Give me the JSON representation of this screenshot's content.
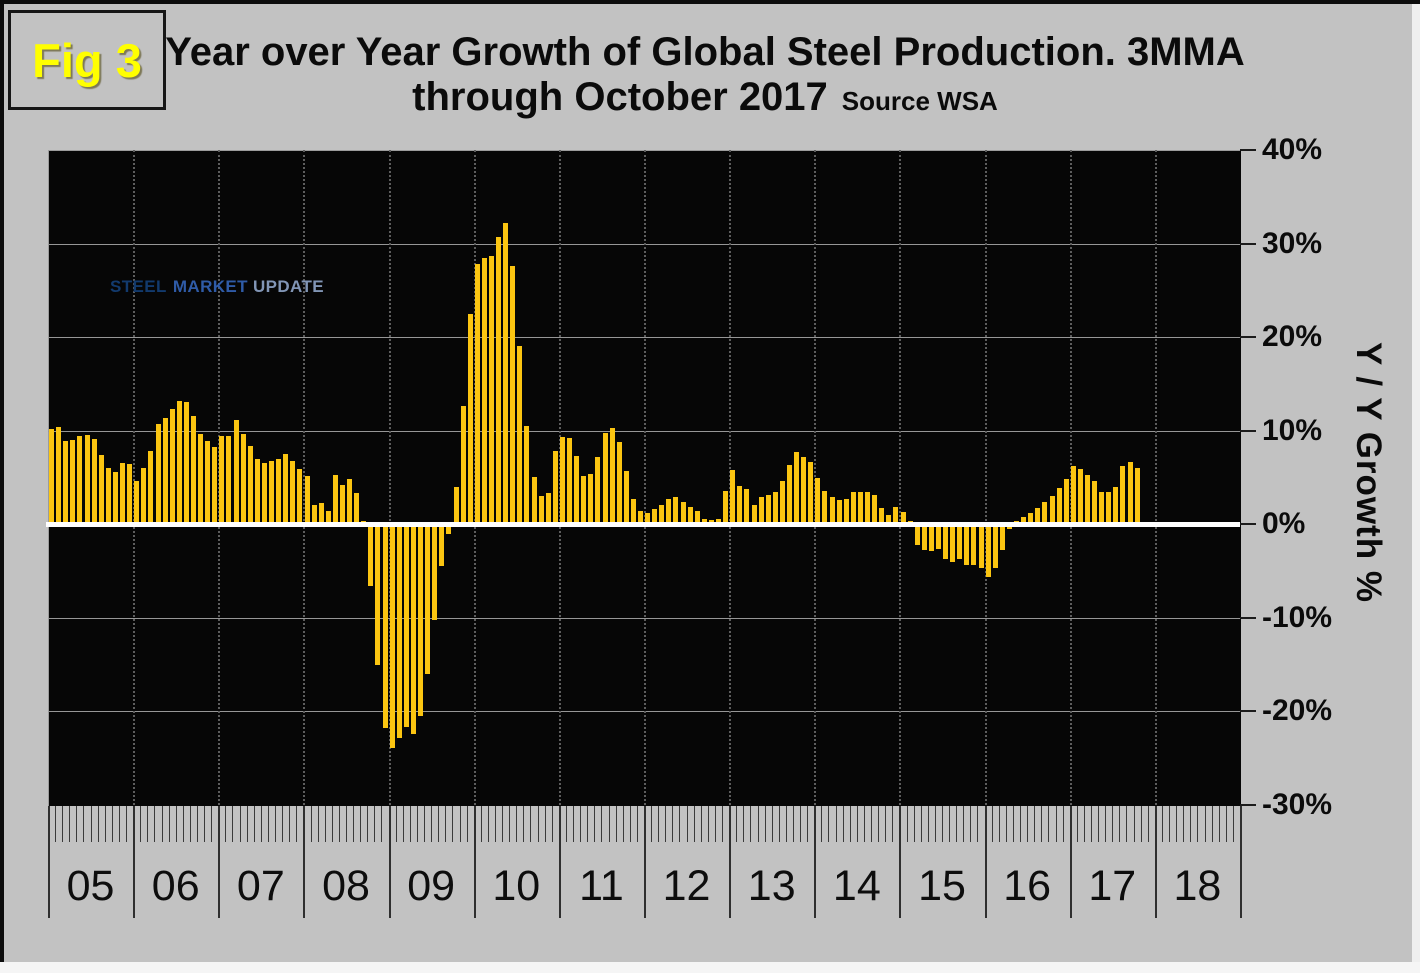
{
  "figure": {
    "fig_label": "Fig 3",
    "title_line1": "Year over Year Growth of Global Steel Production. 3MMA",
    "title_line2": "through October 2017",
    "source": "Source WSA"
  },
  "logo": {
    "word1": "STEEL",
    "word2": "MARKET",
    "word3": "UPDATE"
  },
  "colors": {
    "page_background": "#C2C2C2",
    "plot_background": "#060606",
    "bar": "#FBC511",
    "zero_line": "#FFFFFF",
    "horizontal_gridline": "#969696",
    "year_gridline": "#5D5D5D",
    "fig_label": "#FFFF00",
    "logo_orange_top": "#F79B2B",
    "logo_orange_bottom": "#D9441C",
    "logo_navy": "#123A6D",
    "logo_blue": "#2F5BA7",
    "logo_gray_blue": "#8195B5"
  },
  "chart_data": {
    "type": "bar",
    "title": "Year over Year Growth of Global Steel Production. 3MMA through October 2017",
    "source": "Source WSA",
    "xlabel": "",
    "ylabel": "Y / Y Growth %",
    "ylim": [
      -30,
      40
    ],
    "ytick_values": [
      40,
      30,
      20,
      10,
      0,
      -10,
      -20,
      -30
    ],
    "yticks": [
      "40%",
      "30%",
      "20%",
      "10%",
      "0%",
      "-10%",
      "-20%",
      "-30%"
    ],
    "x_year_labels": [
      "05",
      "06",
      "07",
      "08",
      "09",
      "10",
      "11",
      "12",
      "13",
      "14",
      "15",
      "16",
      "17",
      "18"
    ],
    "grid": "horizontal solid gray lines every 10%, vertical dotted lines at year boundaries, thick white line at 0%",
    "legend_position": "none",
    "bar_color": "#FBC511",
    "series": [
      {
        "name": "Global steel production year-over-year growth % (3MMA, monthly)",
        "first_month": "2005-01",
        "last_month": "2017-10",
        "values_by_year": {
          "2005": [
            10.2,
            10.4,
            8.9,
            9.0,
            9.4,
            9.5,
            9.1,
            7.4,
            6.0,
            5.6,
            6.5,
            6.4
          ],
          "2006": [
            4.6,
            6.0,
            7.8,
            10.7,
            11.4,
            12.3,
            13.2,
            13.1,
            11.6,
            9.7,
            8.9,
            8.3
          ],
          "2007": [
            9.4,
            9.4,
            11.1,
            9.6,
            8.4,
            7.0,
            6.6,
            6.8,
            7.0,
            7.5,
            6.8,
            5.9
          ],
          "2008": [
            5.2,
            2.1,
            2.3,
            1.4,
            5.3,
            4.2,
            4.8,
            3.3,
            0.4,
            -6.6,
            -15.0,
            -21.8
          ],
          "2009": [
            -23.9,
            -22.8,
            -21.7,
            -22.4,
            -20.5,
            -16.0,
            -10.2,
            -4.5,
            -1.0,
            4.0,
            12.6,
            22.5
          ],
          "2010": [
            27.8,
            28.5,
            28.7,
            30.7,
            32.2,
            27.6,
            19.1,
            10.5,
            5.1,
            3.0,
            3.3,
            7.8
          ],
          "2011": [
            9.3,
            9.2,
            7.3,
            5.2,
            5.4,
            7.2,
            9.8,
            10.3,
            8.8,
            5.7,
            2.7,
            1.4
          ],
          "2012": [
            1.2,
            1.6,
            2.1,
            2.7,
            2.9,
            2.4,
            1.9,
            1.4,
            0.6,
            0.5,
            0.6,
            3.6
          ],
          "2013": [
            5.8,
            4.1,
            3.8,
            2.1,
            2.9,
            3.1,
            3.5,
            4.6,
            6.3,
            7.7,
            7.2,
            6.7
          ],
          "2014": [
            4.9,
            3.6,
            2.9,
            2.6,
            2.7,
            3.5,
            3.5,
            3.4,
            3.1,
            1.7,
            1.0,
            1.8
          ],
          "2015": [
            1.3,
            0.3,
            -2.2,
            -2.7,
            -2.9,
            -2.6,
            -3.7,
            -4.0,
            -3.7,
            -4.3,
            -4.4,
            -4.7
          ],
          "2016": [
            -5.6,
            -4.7,
            -2.7,
            -0.5,
            0.4,
            0.8,
            1.2,
            1.7,
            2.4,
            3.0,
            3.9,
            4.8
          ],
          "2017": [
            6.2,
            5.9,
            5.3,
            4.6,
            3.5,
            3.4,
            4.0,
            6.2,
            6.7,
            6.0
          ]
        }
      }
    ]
  }
}
